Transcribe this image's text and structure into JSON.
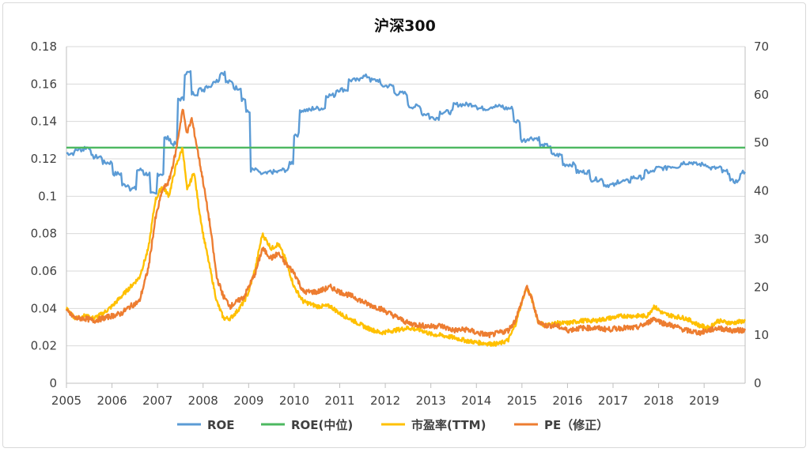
{
  "chart_data": {
    "type": "line",
    "title": "沪深300",
    "x_labels": [
      "2005",
      "2006",
      "2007",
      "2008",
      "2009",
      "2010",
      "2011",
      "2012",
      "2013",
      "2014",
      "2015",
      "2016",
      "2017",
      "2018",
      "2019"
    ],
    "xlim": [
      2005,
      2019.9
    ],
    "y_left": {
      "ylim": [
        0,
        0.18
      ],
      "ticks": [
        "0",
        "0.02",
        "0.04",
        "0.06",
        "0.08",
        "0.1",
        "0.12",
        "0.14",
        "0.16",
        "0.18"
      ]
    },
    "y_right": {
      "ylim": [
        0,
        70
      ],
      "ticks": [
        "0",
        "10",
        "20",
        "30",
        "40",
        "50",
        "60",
        "70"
      ]
    },
    "grid": true,
    "legend_position": "bottom",
    "series": [
      {
        "name": "ROE",
        "axis": "left",
        "color": "#5B9BD5",
        "x": [
          2005.0,
          2005.3,
          2005.45,
          2005.6,
          2005.9,
          2006.1,
          2006.3,
          2006.45,
          2006.6,
          2006.75,
          2006.9,
          2007.05,
          2007.2,
          2007.35,
          2007.5,
          2007.65,
          2007.8,
          2007.95,
          2008.1,
          2008.3,
          2008.4,
          2008.55,
          2008.75,
          2008.9,
          2008.97,
          2009.1,
          2009.3,
          2009.55,
          2009.8,
          2009.95,
          2010.0,
          2010.2,
          2010.5,
          2010.8,
          2011.0,
          2011.3,
          2011.55,
          2011.75,
          2012.0,
          2012.3,
          2012.6,
          2012.9,
          2013.0,
          2013.3,
          2013.6,
          2013.9,
          2014.1,
          2014.4,
          2014.7,
          2014.9,
          2015.0,
          2015.2,
          2015.5,
          2015.75,
          2016.0,
          2016.3,
          2016.6,
          2016.9,
          2017.2,
          2017.5,
          2017.8,
          2018.0,
          2018.3,
          2018.6,
          2018.9,
          2019.2,
          2019.5,
          2019.6,
          2019.9
        ],
        "y": [
          0.123,
          0.125,
          0.126,
          0.121,
          0.118,
          0.112,
          0.106,
          0.104,
          0.114,
          0.112,
          0.101,
          0.112,
          0.131,
          0.128,
          0.152,
          0.166,
          0.155,
          0.157,
          0.159,
          0.162,
          0.166,
          0.161,
          0.158,
          0.152,
          0.145,
          0.114,
          0.112,
          0.113,
          0.114,
          0.118,
          0.133,
          0.146,
          0.147,
          0.154,
          0.157,
          0.162,
          0.164,
          0.162,
          0.159,
          0.155,
          0.148,
          0.144,
          0.142,
          0.145,
          0.149,
          0.149,
          0.147,
          0.148,
          0.147,
          0.14,
          0.13,
          0.131,
          0.127,
          0.122,
          0.117,
          0.113,
          0.109,
          0.106,
          0.108,
          0.11,
          0.113,
          0.115,
          0.116,
          0.118,
          0.117,
          0.115,
          0.113,
          0.108,
          0.113
        ]
      },
      {
        "name": "ROE(中位)",
        "axis": "left",
        "color": "#4CB860",
        "x": [
          2005.0,
          2019.9
        ],
        "y": [
          0.126,
          0.126
        ]
      },
      {
        "name": "市盈率(TTM)",
        "axis": "right",
        "color": "#FFC000",
        "x": [
          2005.0,
          2005.2,
          2005.4,
          2005.6,
          2005.8,
          2006.0,
          2006.2,
          2006.4,
          2006.6,
          2006.8,
          2006.95,
          2007.1,
          2007.25,
          2007.4,
          2007.55,
          2007.65,
          2007.8,
          2007.9,
          2008.0,
          2008.15,
          2008.3,
          2008.45,
          2008.6,
          2008.75,
          2008.9,
          2009.0,
          2009.15,
          2009.3,
          2009.5,
          2009.65,
          2009.8,
          2010.0,
          2010.2,
          2010.5,
          2010.8,
          2011.0,
          2011.3,
          2011.6,
          2011.9,
          2012.2,
          2012.5,
          2012.8,
          2013.0,
          2013.2,
          2013.5,
          2013.8,
          2014.0,
          2014.3,
          2014.5,
          2014.7,
          2014.85,
          2015.0,
          2015.1,
          2015.2,
          2015.35,
          2015.5,
          2015.75,
          2016.0,
          2016.3,
          2016.6,
          2016.9,
          2017.2,
          2017.5,
          2017.75,
          2017.9,
          2018.1,
          2018.3,
          2018.6,
          2018.9,
          2019.1,
          2019.3,
          2019.6,
          2019.9
        ],
        "y": [
          15.5,
          13.5,
          14,
          13.5,
          14.5,
          16,
          18,
          20,
          22,
          28,
          38,
          41,
          39,
          45,
          49,
          40,
          44,
          37,
          31,
          24,
          17,
          13.5,
          13.5,
          15,
          17,
          19,
          24,
          31,
          28,
          29,
          26,
          20,
          17,
          16,
          16,
          14.5,
          13,
          11.5,
          10.5,
          11,
          11.5,
          11,
          10.2,
          10,
          9.5,
          8.8,
          8.5,
          8.2,
          8.2,
          9,
          12,
          17,
          20,
          18,
          13,
          12,
          12.5,
          12.5,
          13,
          13,
          13.5,
          14,
          14,
          14,
          16,
          14.5,
          14,
          13.5,
          12,
          11.5,
          13,
          12.5,
          13
        ]
      },
      {
        "name": "PE（修正）",
        "axis": "right",
        "color": "#ED7D31",
        "x": [
          2005.0,
          2005.2,
          2005.4,
          2005.6,
          2005.8,
          2006.0,
          2006.2,
          2006.4,
          2006.6,
          2006.8,
          2006.95,
          2007.1,
          2007.25,
          2007.4,
          2007.55,
          2007.65,
          2007.75,
          2007.85,
          2008.0,
          2008.15,
          2008.3,
          2008.45,
          2008.6,
          2008.75,
          2008.9,
          2009.0,
          2009.15,
          2009.3,
          2009.5,
          2009.65,
          2009.8,
          2010.0,
          2010.2,
          2010.5,
          2010.8,
          2011.0,
          2011.3,
          2011.6,
          2011.9,
          2012.2,
          2012.5,
          2012.8,
          2013.0,
          2013.2,
          2013.5,
          2013.8,
          2014.0,
          2014.3,
          2014.5,
          2014.7,
          2014.85,
          2015.0,
          2015.1,
          2015.2,
          2015.35,
          2015.5,
          2015.75,
          2016.0,
          2016.3,
          2016.6,
          2016.9,
          2017.2,
          2017.5,
          2017.75,
          2017.9,
          2018.1,
          2018.3,
          2018.6,
          2018.9,
          2019.1,
          2019.3,
          2019.6,
          2019.9
        ],
        "y": [
          15,
          13.5,
          13.5,
          13,
          13.5,
          14,
          14.5,
          16,
          17,
          24,
          34,
          40,
          42,
          48,
          57,
          52,
          55,
          50,
          42,
          33,
          22,
          18,
          16,
          17,
          18,
          20,
          23,
          28,
          26,
          27,
          25,
          23,
          19,
          19,
          20,
          19,
          18,
          16.5,
          15.5,
          14,
          12.5,
          12,
          11.8,
          12,
          11,
          11.2,
          10.5,
          10,
          10.5,
          11,
          13,
          17,
          20,
          18,
          13,
          12,
          12,
          11,
          11.5,
          11.5,
          11.2,
          11.5,
          11.5,
          12.5,
          13.5,
          12.5,
          12,
          11,
          10.5,
          11,
          11.5,
          11,
          11
        ]
      }
    ]
  }
}
